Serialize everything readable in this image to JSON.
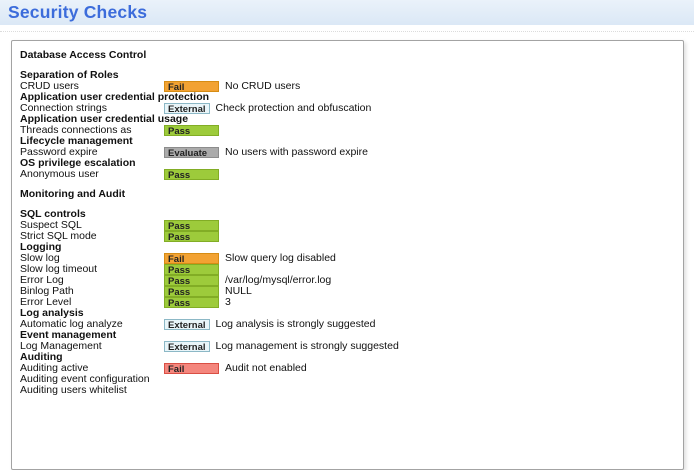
{
  "header": {
    "title": "Security Checks"
  },
  "colors": {
    "title-text": "#3c6cdb",
    "title-bg": "#dbe8f6",
    "box-border": "#a3a3a3",
    "text": "#111111",
    "fail-orange-bg": "#f2a233",
    "fail-orange-border": "#d68c14",
    "pass-bg": "#9dcb3b",
    "pass-border": "#82ad25",
    "evaluate-bg": "#ababab",
    "evaluate-border": "#8c8c8c",
    "external-bg": "#e9f5f9",
    "external-border": "#8cb8c6",
    "fail-red-bg": "#f4867d",
    "fail-red-border": "#d94f44"
  },
  "badges": {
    "fail-orange": "Fail",
    "pass": "Pass",
    "evaluate": "Evaluate",
    "external": "External",
    "fail-red": "Fail"
  },
  "report": {
    "rows": [
      {
        "type": "header",
        "label": "Database Access Control"
      },
      {
        "type": "spacer"
      },
      {
        "type": "header",
        "label": "Separation of Roles"
      },
      {
        "type": "item",
        "label": "CRUD users",
        "badge": "fail-orange",
        "note": "No CRUD users"
      },
      {
        "type": "header",
        "label": "Application user credential protection"
      },
      {
        "type": "item",
        "label": "Connection strings",
        "badge": "external",
        "note": "Check protection and obfuscation"
      },
      {
        "type": "header",
        "label": "Application user credential usage"
      },
      {
        "type": "item",
        "label": "Threads connections as",
        "badge": "pass",
        "note": ""
      },
      {
        "type": "header",
        "label": "Lifecycle management"
      },
      {
        "type": "item",
        "label": "Password expire",
        "badge": "evaluate",
        "note": "No users with password expire"
      },
      {
        "type": "header",
        "label": "OS privilege escalation"
      },
      {
        "type": "item",
        "label": "Anonymous user",
        "badge": "pass",
        "note": ""
      },
      {
        "type": "spacer"
      },
      {
        "type": "header",
        "label": "Monitoring and Audit"
      },
      {
        "type": "spacer"
      },
      {
        "type": "header",
        "label": "SQL controls"
      },
      {
        "type": "item",
        "label": "Suspect SQL",
        "badge": "pass",
        "note": ""
      },
      {
        "type": "item",
        "label": "Strict SQL mode",
        "badge": "pass",
        "note": ""
      },
      {
        "type": "header",
        "label": "Logging"
      },
      {
        "type": "item",
        "label": "Slow log",
        "badge": "fail-orange",
        "note": "Slow query log disabled"
      },
      {
        "type": "item",
        "label": "Slow log timeout",
        "badge": "pass",
        "note": ""
      },
      {
        "type": "item",
        "label": "Error Log",
        "badge": "pass",
        "note": "/var/log/mysql/error.log"
      },
      {
        "type": "item",
        "label": "Binlog Path",
        "badge": "pass",
        "note": "NULL"
      },
      {
        "type": "item",
        "label": "Error Level",
        "badge": "pass",
        "note": "3"
      },
      {
        "type": "header",
        "label": "Log analysis"
      },
      {
        "type": "item",
        "label": "Automatic log analyze",
        "badge": "external",
        "note": "Log analysis is strongly suggested"
      },
      {
        "type": "header",
        "label": "Event management"
      },
      {
        "type": "item",
        "label": "Log Management",
        "badge": "external",
        "note": "Log management is strongly suggested"
      },
      {
        "type": "header",
        "label": "Auditing"
      },
      {
        "type": "item",
        "label": "Auditing active",
        "badge": "fail-red",
        "note": "Audit not enabled"
      },
      {
        "type": "item",
        "label": "Auditing event configuration",
        "badge": null,
        "note": ""
      },
      {
        "type": "item",
        "label": "Auditing users whitelist",
        "badge": null,
        "note": ""
      }
    ]
  }
}
